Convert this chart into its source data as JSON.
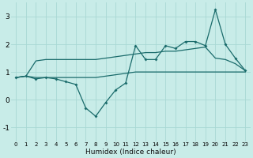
{
  "background_color": "#c8ece8",
  "grid_color": "#a8d8d4",
  "line_color": "#1a6b6b",
  "xlabel": "Humidex (Indice chaleur)",
  "x_ticks": [
    0,
    1,
    2,
    3,
    4,
    5,
    6,
    7,
    8,
    9,
    10,
    11,
    12,
    13,
    14,
    15,
    16,
    17,
    18,
    19,
    20,
    21,
    22,
    23
  ],
  "ylim": [
    -1.5,
    3.5
  ],
  "xlim": [
    -0.5,
    23.5
  ],
  "yticks": [
    -1,
    0,
    1,
    2,
    3
  ],
  "s1_x": [
    0,
    1,
    2,
    3,
    4,
    5,
    6,
    7,
    8,
    9,
    10,
    11,
    12,
    13,
    14,
    15,
    16,
    17,
    18,
    19,
    20,
    21,
    22,
    23
  ],
  "s1_y": [
    0.8,
    0.85,
    0.8,
    0.8,
    0.8,
    0.8,
    0.8,
    0.8,
    0.8,
    0.85,
    0.9,
    0.95,
    1.0,
    1.0,
    1.0,
    1.0,
    1.0,
    1.0,
    1.0,
    1.0,
    1.0,
    1.0,
    1.0,
    1.0
  ],
  "s2_x": [
    0,
    1,
    2,
    3,
    4,
    5,
    6,
    7,
    8,
    9,
    10,
    11,
    12,
    13,
    14,
    15,
    16,
    17,
    18,
    19,
    20,
    21,
    22,
    23
  ],
  "s2_y": [
    0.8,
    0.85,
    1.4,
    1.45,
    1.45,
    1.45,
    1.45,
    1.45,
    1.45,
    1.5,
    1.55,
    1.6,
    1.65,
    1.7,
    1.7,
    1.75,
    1.75,
    1.8,
    1.85,
    1.9,
    1.5,
    1.45,
    1.3,
    1.05
  ],
  "s3_x": [
    0,
    1,
    2,
    3,
    4,
    5,
    6,
    7,
    8,
    9,
    10,
    11,
    12,
    13,
    14,
    15,
    16,
    17,
    18,
    19,
    20,
    21,
    22,
    23
  ],
  "s3_y": [
    0.8,
    0.85,
    0.75,
    0.8,
    0.75,
    0.65,
    0.55,
    -0.3,
    -0.6,
    -0.1,
    0.35,
    0.6,
    1.95,
    1.45,
    1.45,
    1.95,
    1.85,
    2.1,
    2.1,
    1.95,
    3.25,
    2.0,
    1.5,
    1.05
  ]
}
